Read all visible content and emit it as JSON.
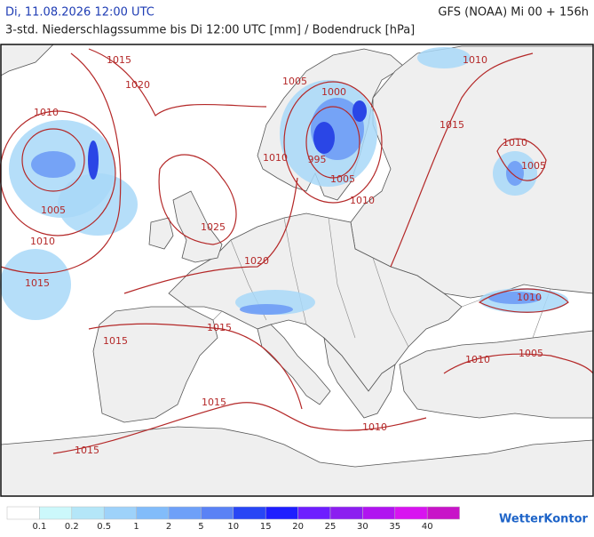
{
  "header": {
    "date": "Di, 11.08.2026 12:00 UTC",
    "model": "GFS (NOAA) Mi 00 + 156h",
    "subtitle": "3-std. Niederschlagssumme bis Di 12:00 UTC [mm] / Bodendruck [hPa]"
  },
  "isobar_labels": [
    "1015",
    "1020",
    "1010",
    "1005",
    "1010",
    "1015",
    "1005",
    "1000",
    "995",
    "1010",
    "1005",
    "1010",
    "1025",
    "1020",
    "1015",
    "1010",
    "1010",
    "1005",
    "1010",
    "1015",
    "1015",
    "1015",
    "1015",
    "1010",
    "1005",
    "1010"
  ],
  "legend": {
    "colors": [
      "#ffffff",
      "#ccf8fb",
      "#b4e6f8",
      "#9ed2fa",
      "#82bcfa",
      "#6ea0f8",
      "#5a82f5",
      "#2846f5",
      "#1e1eff",
      "#6e1eff",
      "#8c1ef0",
      "#b014f0",
      "#d814f0",
      "#c814c8"
    ],
    "labels": [
      0.1,
      0.2,
      0.5,
      1,
      2,
      5,
      10,
      15,
      20,
      25,
      30,
      35,
      40
    ]
  },
  "brand": "WetterKontor"
}
